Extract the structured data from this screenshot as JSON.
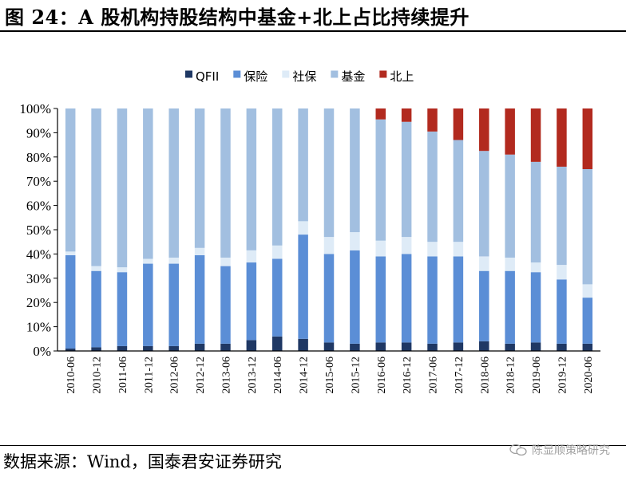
{
  "header": {
    "title": "图 24：A 股机构持股结构中基金+北上占比持续提升"
  },
  "footer": {
    "source": "数据来源：Wind，国泰君安证券研究",
    "watermark": "陈显顺策略研究"
  },
  "colors": {
    "QFII": "#1f3864",
    "保险": "#5b8ed6",
    "社保": "#deebf7",
    "基金": "#a2bfe0",
    "北上": "#b22a1f"
  },
  "chart_data": {
    "type": "bar",
    "stacked": true,
    "percent": true,
    "categories": [
      "2010-06",
      "2010-12",
      "2011-06",
      "2011-12",
      "2012-06",
      "2012-12",
      "2013-06",
      "2013-12",
      "2014-06",
      "2014-12",
      "2015-06",
      "2015-12",
      "2016-06",
      "2016-12",
      "2017-06",
      "2017-12",
      "2018-06",
      "2018-12",
      "2019-06",
      "2019-12",
      "2020-06"
    ],
    "series": [
      {
        "name": "QFII",
        "values": [
          1,
          1.5,
          2,
          2,
          2,
          3,
          3,
          4.5,
          6,
          5,
          3.5,
          3,
          3.5,
          3.5,
          3,
          3.5,
          4,
          3,
          3.5,
          3,
          3
        ]
      },
      {
        "name": "保险",
        "values": [
          38.5,
          31.5,
          30.5,
          34,
          34,
          36.5,
          32,
          32,
          32,
          43,
          36.5,
          38.5,
          35.5,
          36.5,
          36,
          35.5,
          29,
          30,
          29,
          26.5,
          19
        ]
      },
      {
        "name": "社保",
        "values": [
          1.5,
          2,
          2,
          2,
          2.5,
          3,
          3.5,
          5,
          5.5,
          5.5,
          7,
          7.5,
          6.5,
          7,
          6,
          6,
          6,
          5.5,
          4,
          6,
          5.5
        ]
      },
      {
        "name": "基金",
        "values": [
          59,
          65,
          65.5,
          62,
          61.5,
          57.5,
          61.5,
          58.5,
          56.5,
          46.5,
          53,
          51,
          50,
          47.5,
          45.5,
          42,
          43.5,
          42.5,
          41.5,
          40.5,
          47.5
        ]
      },
      {
        "name": "北上",
        "values": [
          0,
          0,
          0,
          0,
          0,
          0,
          0,
          0,
          0,
          0,
          0,
          0,
          4.5,
          5.5,
          9.5,
          13,
          17.5,
          19,
          22,
          24,
          25
        ]
      }
    ],
    "yticks": [
      "0%",
      "10%",
      "20%",
      "30%",
      "40%",
      "50%",
      "60%",
      "70%",
      "80%",
      "90%",
      "100%"
    ],
    "ylim": [
      0,
      100
    ],
    "legend_position": "top"
  }
}
